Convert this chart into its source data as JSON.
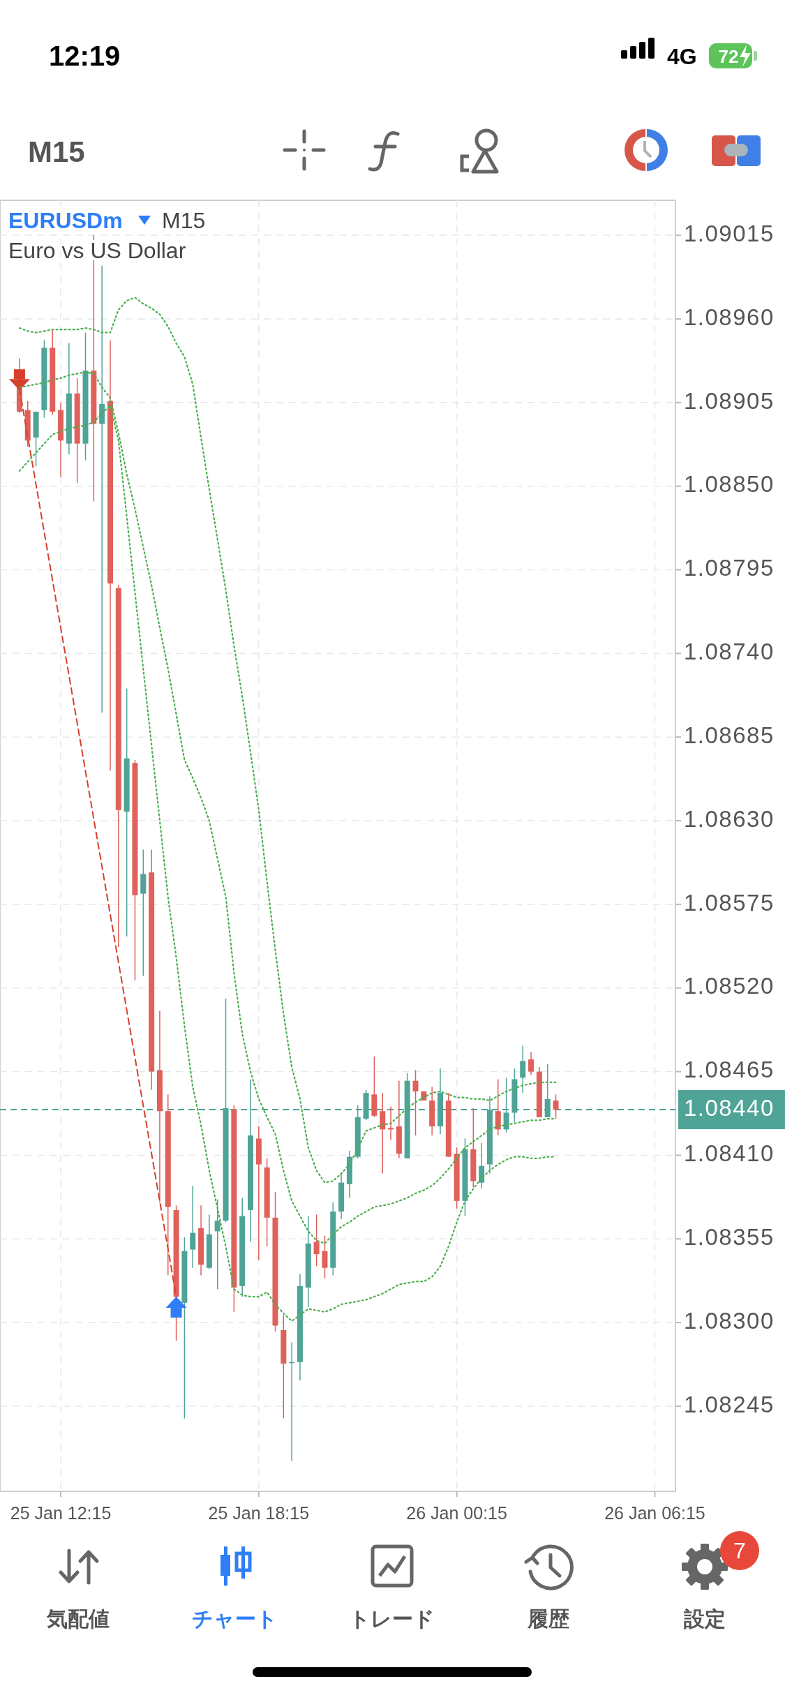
{
  "chart_data": {
    "type": "candlestick",
    "title": "EURUSDm",
    "subtitle": "Euro vs US Dollar",
    "categories": [
      null,
      null,
      null,
      null,
      null,
      "25 Jan 12:15",
      null,
      null,
      null,
      null,
      null,
      null,
      null,
      null,
      null,
      null,
      null,
      null,
      null,
      null,
      null,
      null,
      null,
      null,
      null,
      null,
      null,
      null,
      null,
      "25 Jan 18:15",
      null,
      null,
      null,
      null,
      null,
      null,
      null,
      null,
      null,
      null,
      null,
      null,
      null,
      null,
      null,
      null,
      null,
      null,
      null,
      null,
      null,
      null,
      null,
      "26 Jan 00:15",
      null,
      null,
      null,
      null,
      null,
      null,
      null,
      null,
      null,
      null,
      null,
      null,
      null,
      null,
      null,
      null,
      null,
      null,
      null,
      null,
      null,
      null,
      null,
      "26 Jan 06:15",
      null,
      null
    ],
    "ohlc": [
      [
        1.08926,
        1.08934,
        1.08898,
        1.08899
      ],
      [
        1.089,
        1.08906,
        1.08876,
        1.0888
      ],
      [
        1.08882,
        1.08899,
        1.08863,
        1.08899
      ],
      [
        1.089,
        1.08946,
        1.08895,
        1.08941
      ],
      [
        1.08941,
        1.08953,
        1.08897,
        1.08899
      ],
      [
        1.089,
        1.08905,
        1.08856,
        1.0888
      ],
      [
        1.08878,
        1.08944,
        1.08871,
        1.08911
      ],
      [
        1.08911,
        1.08921,
        1.08852,
        1.08878
      ],
      [
        1.08878,
        1.08951,
        1.08867,
        1.08926
      ],
      [
        1.08926,
        1.09015,
        1.0884,
        1.08891
      ],
      [
        1.08891,
        1.08995,
        1.08701,
        1.08904
      ],
      [
        1.08906,
        1.08946,
        1.08663,
        1.08786
      ],
      [
        1.08783,
        1.08785,
        1.08547,
        1.08637
      ],
      [
        1.08636,
        1.08717,
        1.08554,
        1.08671
      ],
      [
        1.08668,
        1.0867,
        1.08525,
        1.08581
      ],
      [
        1.08582,
        1.08611,
        1.08528,
        1.08595
      ],
      [
        1.08596,
        1.08611,
        1.08453,
        1.08465
      ],
      [
        1.08466,
        1.08505,
        1.08379,
        1.08439
      ],
      [
        1.08439,
        1.0845,
        1.08331,
        1.08376
      ],
      [
        1.08374,
        1.08377,
        1.08288,
        1.08317
      ],
      [
        1.08313,
        1.08356,
        1.08237,
        1.08347
      ],
      [
        1.08348,
        1.0839,
        1.08336,
        1.08359
      ],
      [
        1.08362,
        1.08377,
        1.08331,
        1.08338
      ],
      [
        1.08336,
        1.08371,
        1.08335,
        1.08358
      ],
      [
        1.0836,
        1.08381,
        1.08322,
        1.08367
      ],
      [
        1.08367,
        1.08513,
        1.08366,
        1.08441
      ],
      [
        1.0844,
        1.08443,
        1.08307,
        1.08323
      ],
      [
        1.08324,
        1.08382,
        1.08317,
        1.0837
      ],
      [
        1.08374,
        1.0846,
        1.08353,
        1.08423
      ],
      [
        1.08421,
        1.08429,
        1.08341,
        1.08404
      ],
      [
        1.08402,
        1.08408,
        1.0835,
        1.08369
      ],
      [
        1.08369,
        1.08386,
        1.08294,
        1.08298
      ],
      [
        1.08295,
        1.08305,
        1.08237,
        1.08273
      ],
      [
        1.08274,
        1.08287,
        1.08209,
        1.08274
      ],
      [
        1.08274,
        1.08332,
        1.08262,
        1.08324
      ],
      [
        1.08323,
        1.0837,
        1.0831,
        1.08352
      ],
      [
        1.08353,
        1.08371,
        1.08337,
        1.08345
      ],
      [
        1.08347,
        1.08357,
        1.08329,
        1.08336
      ],
      [
        1.08336,
        1.08379,
        1.08331,
        1.08373
      ],
      [
        1.08373,
        1.08398,
        1.08368,
        1.08392
      ],
      [
        1.08391,
        1.08413,
        1.08382,
        1.08409
      ],
      [
        1.08409,
        1.08443,
        1.08408,
        1.08435
      ],
      [
        1.08434,
        1.08453,
        1.08433,
        1.08451
      ],
      [
        1.0845,
        1.08475,
        1.08435,
        1.08436
      ],
      [
        1.08439,
        1.08451,
        1.08398,
        1.08427
      ],
      [
        1.08428,
        1.08442,
        1.0842,
        1.08427
      ],
      [
        1.08429,
        1.08459,
        1.08408,
        1.08411
      ],
      [
        1.08408,
        1.08464,
        1.08408,
        1.08459
      ],
      [
        1.08459,
        1.08466,
        1.08423,
        1.08452
      ],
      [
        1.08452,
        1.08452,
        1.08446,
        1.08446
      ],
      [
        1.08446,
        1.08455,
        1.08423,
        1.08429
      ],
      [
        1.08429,
        1.08467,
        1.08424,
        1.08451
      ],
      [
        1.08446,
        1.08451,
        1.08409,
        1.08409
      ],
      [
        1.08411,
        1.08415,
        1.08375,
        1.0838
      ],
      [
        1.0838,
        1.08421,
        1.0837,
        1.08414
      ],
      [
        1.08414,
        1.08441,
        1.08389,
        1.08393
      ],
      [
        1.08392,
        1.08418,
        1.08388,
        1.08403
      ],
      [
        1.08404,
        1.08449,
        1.08398,
        1.0844
      ],
      [
        1.08439,
        1.0846,
        1.08423,
        1.08427
      ],
      [
        1.08427,
        1.08461,
        1.08425,
        1.08438
      ],
      [
        1.08438,
        1.08467,
        1.08432,
        1.0846
      ],
      [
        1.08461,
        1.08482,
        1.08451,
        1.08472
      ],
      [
        1.08473,
        1.08478,
        1.08463,
        1.08465
      ],
      [
        1.08465,
        1.08468,
        1.08435,
        1.08435
      ],
      [
        1.08435,
        1.0847,
        1.08435,
        1.08447
      ],
      [
        1.08446,
        1.0845,
        1.08434,
        1.0844
      ],
      null,
      null,
      null,
      null,
      null,
      null,
      null,
      null,
      null,
      null,
      null,
      null,
      null,
      null
    ],
    "colors": [
      "#e0605a",
      "#e0605a",
      "#4fa397",
      "#4fa397",
      "#e0605a",
      "#e0605a",
      "#4fa397",
      "#e0605a",
      "#4fa397",
      "#e0605a",
      "#4fa397",
      "#e0605a",
      "#e0605a",
      "#4fa397",
      "#e0605a",
      "#4fa397",
      "#e0605a",
      "#e0605a",
      "#e0605a",
      "#e0605a",
      "#4fa397",
      "#4fa397",
      "#e0605a",
      "#4fa397",
      "#4fa397",
      "#4fa397",
      "#e0605a",
      "#4fa397",
      "#4fa397",
      "#e0605a",
      "#e0605a",
      "#e0605a",
      "#e0605a",
      "#4fa397",
      "#4fa397",
      "#4fa397",
      "#e0605a",
      "#e0605a",
      "#4fa397",
      "#4fa397",
      "#4fa397",
      "#4fa397",
      "#4fa397",
      "#e0605a",
      "#e0605a",
      "#e0605a",
      "#e0605a",
      "#4fa397",
      "#e0605a",
      "#e0605a",
      "#e0605a",
      "#4fa397",
      "#e0605a",
      "#e0605a",
      "#4fa397",
      "#e0605a",
      "#4fa397",
      "#4fa397",
      "#e0605a",
      "#4fa397",
      "#4fa397",
      "#4fa397",
      "#e0605a",
      "#e0605a",
      "#4fa397",
      "#e0605a",
      null,
      null,
      null,
      null,
      null,
      null,
      null,
      null,
      null,
      null,
      null,
      null,
      null,
      null
    ],
    "series": [
      {
        "type": "line",
        "color": "#4caf50",
        "line_style": "dotted",
        "values": [
          1.08954,
          1.08952,
          1.08951,
          1.08952,
          1.08953,
          1.08953,
          1.08953,
          1.08953,
          1.08954,
          1.08953,
          1.08951,
          1.08951,
          1.08966,
          1.08972,
          1.08974,
          1.0897,
          1.08967,
          1.08963,
          1.08955,
          1.08944,
          1.08935,
          1.08917,
          1.08882,
          1.08848,
          1.08815,
          1.08782,
          1.08745,
          1.08712,
          1.08675,
          1.08637,
          1.0859,
          1.08545,
          1.08503,
          1.08468,
          1.08447,
          1.08415,
          1.084,
          1.08392,
          1.08393,
          1.08398,
          1.08404,
          1.08414,
          1.08426,
          1.08428,
          1.0843,
          1.08431,
          1.08436,
          1.08441,
          1.08445,
          1.08448,
          1.08451,
          1.08452,
          1.0845,
          1.08448,
          1.08448,
          1.08447,
          1.08447,
          1.08446,
          1.08449,
          1.08452,
          1.08454,
          1.08456,
          1.08457,
          1.08458,
          1.08458,
          1.08458,
          null,
          null,
          null,
          null,
          null,
          null,
          null,
          null,
          null,
          null,
          null,
          null,
          null,
          null
        ]
      },
      {
        "type": "line",
        "color": "#4caf50",
        "line_style": "dotted",
        "values": [
          1.08915,
          1.08916,
          1.08917,
          1.08918,
          1.0892,
          1.08921,
          1.08923,
          1.08924,
          1.08925,
          1.08924,
          1.08915,
          1.08908,
          1.08885,
          1.08858,
          1.08835,
          1.0881,
          1.08785,
          1.08757,
          1.0873,
          1.087,
          1.0867,
          1.08658,
          1.08645,
          1.0863,
          1.08605,
          1.0858,
          1.0853,
          1.0849,
          1.08465,
          1.08447,
          1.08435,
          1.08424,
          1.084,
          1.0838,
          1.0837,
          1.0836,
          1.08354,
          1.08352,
          1.08358,
          1.08363,
          1.08366,
          1.0837,
          1.08373,
          1.08376,
          1.08377,
          1.08378,
          1.0838,
          1.08382,
          1.08385,
          1.08387,
          1.0839,
          1.08395,
          1.08401,
          1.08408,
          1.08415,
          1.08419,
          1.08423,
          1.08427,
          1.08429,
          1.0843,
          1.08431,
          1.08432,
          1.08433,
          1.08433,
          1.08434,
          1.08434,
          null,
          null,
          null,
          null,
          null,
          null,
          null,
          null,
          null,
          null,
          null,
          null,
          null,
          null
        ]
      },
      {
        "type": "line",
        "color": "#4caf50",
        "line_style": "dotted",
        "values": [
          1.0886,
          1.08866,
          1.08872,
          1.08878,
          1.08884,
          1.08886,
          1.08888,
          1.08889,
          1.0889,
          1.08892,
          1.08898,
          1.08903,
          1.0888,
          1.0883,
          1.0878,
          1.0873,
          1.0868,
          1.0863,
          1.0858,
          1.0854,
          1.08495,
          1.08455,
          1.0843,
          1.084,
          1.08375,
          1.0835,
          1.08322,
          1.08318,
          1.08317,
          1.08317,
          1.0832,
          1.08312,
          1.08306,
          1.08301,
          1.08305,
          1.08309,
          1.08308,
          1.08307,
          1.08309,
          1.08312,
          1.08313,
          1.08314,
          1.08315,
          1.08317,
          1.08319,
          1.08322,
          1.08325,
          1.08326,
          1.08327,
          1.08327,
          1.0833,
          1.08337,
          1.0835,
          1.08366,
          1.0838,
          1.08388,
          1.08395,
          1.084,
          1.08404,
          1.08407,
          1.08409,
          1.08409,
          1.08408,
          1.08408,
          1.08409,
          1.08409,
          null,
          null,
          null,
          null,
          null,
          null,
          null,
          null,
          null,
          null,
          null,
          null,
          null,
          null
        ]
      },
      {
        "type": "line",
        "color": "#d6402c",
        "line_style": "dashed",
        "values": [
          1.08914,
          null,
          null,
          null,
          null,
          null,
          null,
          null,
          null,
          null,
          null,
          null,
          null,
          null,
          null,
          null,
          null,
          null,
          null,
          1.08317,
          null,
          null,
          null,
          null,
          null,
          null,
          null,
          null,
          null,
          null,
          null,
          null,
          null,
          null,
          null,
          null,
          null,
          null,
          null,
          null,
          null,
          null,
          null,
          null,
          null,
          null,
          null,
          null,
          null,
          null,
          null,
          null,
          null,
          null,
          null,
          null,
          null,
          null,
          null,
          null,
          null,
          null,
          null,
          null,
          null,
          null,
          null,
          null,
          null,
          null,
          null,
          null,
          null,
          null,
          null,
          null,
          null,
          null,
          null,
          null
        ]
      }
    ],
    "ylim": [
      1.08189,
      1.09038
    ],
    "yticks": [
      1.09015,
      {
        "value": 1.0896,
        "label": "1.08960"
      },
      1.08905,
      {
        "value": 1.0885,
        "label": "1.08850"
      },
      1.08795,
      {
        "value": 1.0874,
        "label": "1.08740"
      },
      1.08685,
      {
        "value": 1.0863,
        "label": "1.08630"
      },
      1.08575,
      {
        "value": 1.0852,
        "label": "1.08520"
      },
      1.08465,
      {
        "value": 1.0841,
        "label": "1.08410"
      },
      1.08355,
      {
        "value": 1.083,
        "label": "1.08300"
      },
      1.08245
    ],
    "grid": true,
    "ref_lines": [
      {
        "axis": "y",
        "value": 1.0844,
        "label": "1.08440",
        "color": "#4fa397",
        "line_style": "dashed"
      }
    ],
    "annotations": [
      "M15",
      "M15",
      "12:19",
      "4G",
      "72",
      "気配値",
      "チャート",
      "トレード",
      "履歴",
      "設定",
      "7"
    ]
  }
}
